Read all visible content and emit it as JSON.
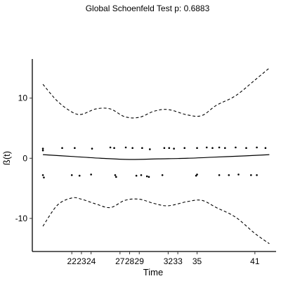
{
  "chart_data": {
    "type": "scatter",
    "title": "Global Schoenfeld Test p: 0.6883",
    "xlabel": "Time",
    "ylabel": "ß(t)",
    "xlim": [
      17.9,
      43.2
    ],
    "ylim": [
      -15.5,
      16.5
    ],
    "x_ticks": [
      22,
      23,
      24,
      27,
      28,
      29,
      32,
      33,
      35,
      41
    ],
    "y_ticks": [
      -10,
      0,
      10
    ],
    "grid": false,
    "legend": "none",
    "series": [
      {
        "type": "line",
        "style": "solid",
        "x": [
          19,
          22,
          25,
          28,
          31,
          34,
          37,
          40,
          42.5
        ],
        "y": [
          0.6,
          0.3,
          0.0,
          -0.2,
          -0.1,
          0.0,
          0.2,
          0.4,
          0.6
        ]
      },
      {
        "type": "line",
        "style": "dashed",
        "x": [
          19,
          20.5,
          22,
          23,
          24.5,
          26,
          27.5,
          29,
          30.5,
          32,
          34,
          35.5,
          37,
          39,
          41,
          42.5
        ],
        "y": [
          12.3,
          9.5,
          7.7,
          7.3,
          8.2,
          8.2,
          6.9,
          6.8,
          7.8,
          8.1,
          7.2,
          7.1,
          8.8,
          10.4,
          13.0,
          15.0
        ]
      },
      {
        "type": "line",
        "style": "dashed",
        "x": [
          19,
          20.5,
          22,
          23,
          24.5,
          26,
          27.5,
          29,
          30.5,
          32,
          34,
          35.5,
          37,
          39,
          41,
          42.5
        ],
        "y": [
          -11.3,
          -7.8,
          -6.6,
          -6.8,
          -7.6,
          -8.2,
          -7.0,
          -6.8,
          -7.5,
          -7.9,
          -7.2,
          -7.0,
          -8.2,
          -9.8,
          -12.5,
          -14.2
        ]
      },
      {
        "type": "scatter",
        "x": [
          19,
          19,
          21,
          22.3,
          24.1,
          26,
          26.4,
          27.6,
          28.3,
          29.3,
          30.1,
          31.6,
          32.1,
          32.6,
          33.7,
          35,
          36,
          36.6,
          37.3,
          37.9,
          39,
          40.1,
          41.2,
          42.1
        ],
        "y": [
          1.6,
          1.3,
          1.7,
          1.7,
          1.6,
          1.8,
          1.7,
          1.8,
          1.7,
          1.7,
          1.5,
          1.7,
          1.7,
          1.6,
          1.7,
          1.7,
          1.8,
          1.7,
          1.8,
          1.7,
          1.8,
          1.7,
          1.8,
          1.7
        ]
      },
      {
        "type": "scatter",
        "x": [
          19,
          19.1,
          22,
          22.8,
          24,
          26.5,
          26.6,
          28.7,
          29.2,
          29.8,
          30,
          31.4,
          34.9,
          35,
          37.3,
          38.3,
          39.3,
          40.6,
          41.2
        ],
        "y": [
          -2.8,
          -3.2,
          -2.8,
          -2.9,
          -2.7,
          -2.8,
          -3.1,
          -2.9,
          -2.8,
          -3.0,
          -3.1,
          -2.8,
          -2.9,
          -2.7,
          -2.8,
          -2.8,
          -2.7,
          -2.8,
          -2.8
        ]
      }
    ]
  }
}
